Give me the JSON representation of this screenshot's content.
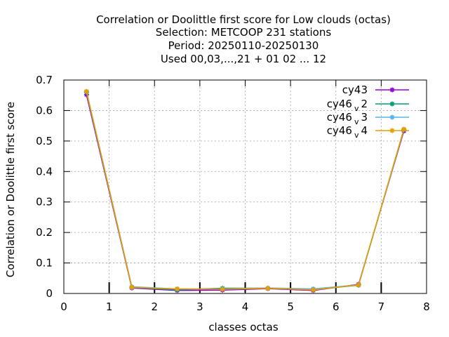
{
  "chart_data": {
    "type": "line",
    "title": [
      "Correlation or Doolittle first score  for Low clouds (octas)",
      "Selection: METCOOP    231 stations",
      "Period: 20250110-20250130",
      "Used  00,03,...,21  + 01 02 ... 12"
    ],
    "xlabel": "classes octas",
    "ylabel": "Correlation or Doolittle first score",
    "xlim": [
      0,
      8
    ],
    "ylim": [
      0,
      0.7
    ],
    "x_ticks": [
      "0",
      "1",
      "2",
      "3",
      "4",
      "5",
      "6",
      "7",
      "8"
    ],
    "y_ticks": [
      "0",
      "0.1",
      "0.2",
      "0.3",
      "0.4",
      "0.5",
      "0.6",
      "0.7"
    ],
    "grid": true,
    "legend_position": "top-right",
    "x": [
      0.5,
      1.5,
      2.5,
      3.5,
      4.5,
      5.5,
      6.5,
      7.5
    ],
    "series": [
      {
        "name": "cy43",
        "name_main": "cy43",
        "name_sub": "",
        "name_tail": "",
        "color": "#9400d3",
        "values": [
          0.652,
          0.018,
          0.01,
          0.011,
          0.016,
          0.01,
          0.03,
          0.533
        ]
      },
      {
        "name": "cy46_v2",
        "name_main": "cy46",
        "name_sub": "v",
        "name_tail": "2",
        "color": "#009e73",
        "values": [
          0.66,
          0.02,
          0.012,
          0.017,
          0.017,
          0.013,
          0.027,
          0.537
        ]
      },
      {
        "name": "cy46_v3",
        "name_main": "cy46",
        "name_sub": "v",
        "name_tail": "3",
        "color": "#56b4e9",
        "values": [
          0.662,
          0.022,
          0.015,
          0.015,
          0.018,
          0.015,
          0.028,
          0.538
        ]
      },
      {
        "name": "cy46_v4",
        "name_main": "cy46",
        "name_sub": "v",
        "name_tail": "4",
        "color": "#e69f00",
        "values": [
          0.663,
          0.02,
          0.015,
          0.014,
          0.017,
          0.012,
          0.028,
          0.539
        ]
      }
    ]
  }
}
